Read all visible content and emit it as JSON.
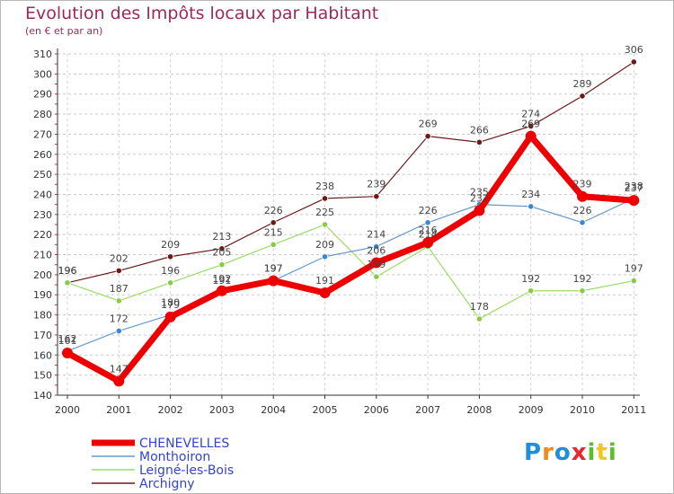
{
  "title": "Evolution des Impôts locaux par Habitant",
  "subtitle": "(en € et par an)",
  "brand": {
    "letters": [
      {
        "ch": "P",
        "color": "#1f8fd6"
      },
      {
        "ch": "r",
        "color": "#f08a1c"
      },
      {
        "ch": "o",
        "color": "#1f8fd6"
      },
      {
        "ch": "x",
        "color": "#e8262e"
      },
      {
        "ch": "i",
        "color": "#5cbf2a"
      },
      {
        "ch": "t",
        "color": "#f0c81c"
      },
      {
        "ch": "i",
        "color": "#5cbf2a"
      }
    ]
  },
  "chart_data": {
    "type": "line",
    "title": "Evolution des Impôts locaux par Habitant",
    "ylabel": "(en € et par an)",
    "xlabel": "",
    "ylim": [
      140,
      310
    ],
    "yticks": [
      140,
      150,
      160,
      170,
      180,
      190,
      200,
      210,
      220,
      230,
      240,
      250,
      260,
      270,
      280,
      290,
      300,
      310
    ],
    "categories": [
      "2000",
      "2001",
      "2002",
      "2003",
      "2004",
      "2005",
      "2006",
      "2007",
      "2008",
      "2009",
      "2010",
      "2011"
    ],
    "series": [
      {
        "name": "Archigny",
        "color": "#6b1a1a",
        "marker": "#6b1a1a",
        "width": 1.2,
        "r": 3.2,
        "values": [
          196,
          202,
          209,
          213,
          226,
          238,
          239,
          269,
          266,
          274,
          289,
          306
        ]
      },
      {
        "name": "Leigné-les-Bois",
        "color": "#99dd66",
        "marker": "#88cc44",
        "width": 1.2,
        "r": 3.2,
        "values": [
          196,
          187,
          196,
          205,
          215,
          225,
          199,
          214,
          178,
          192,
          192,
          197
        ]
      },
      {
        "name": "Monthoiron",
        "color": "#6699cc",
        "marker": "#3d88cc",
        "width": 1.2,
        "r": 3.2,
        "values": [
          162,
          172,
          180,
          191,
          197,
          209,
          214,
          226,
          235,
          234,
          226,
          238
        ]
      },
      {
        "name": "CHENEVELLES",
        "color": "#ee0000",
        "marker": "#ee0000",
        "width": 7,
        "r": 6,
        "values": [
          161,
          147,
          179,
          192,
          197,
          191,
          206,
          216,
          232,
          269,
          239,
          237
        ]
      }
    ],
    "legend": [
      "CHENEVELLES",
      "Monthoiron",
      "Leigné-les-Bois",
      "Archigny"
    ],
    "legend_position": "bottom-left"
  }
}
